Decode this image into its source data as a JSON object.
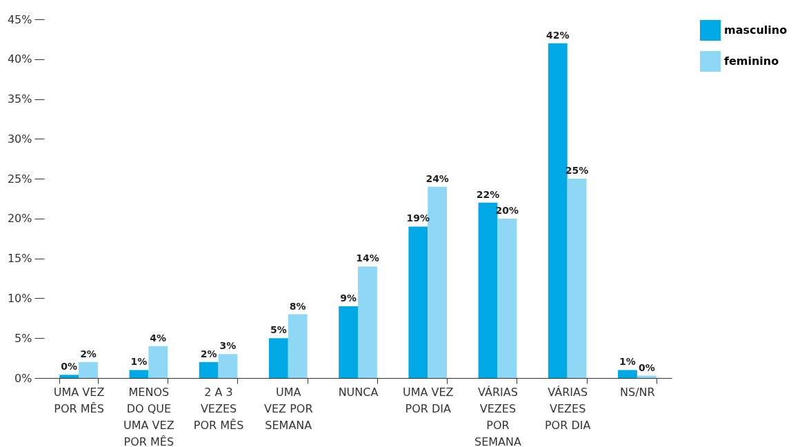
{
  "chart_data": {
    "type": "bar",
    "categories": [
      "UMA VEZ\nPOR MÊS",
      "MENOS\nDO QUE\nUMA VEZ\nPOR MÊS",
      "2 A 3\nVEZES\nPOR MÊS",
      "UMA\nVEZ POR\nSEMANA",
      "NUNCA",
      "UMA VEZ\nPOR DIA",
      "VÁRIAS\nVEZES\nPOR\nSEMANA",
      "VÁRIAS\nVEZES\nPOR DIA",
      "NS/NR"
    ],
    "series": [
      {
        "name": "masculino",
        "color": "#00a8e6",
        "values": [
          0.4,
          1,
          2,
          5,
          9,
          19,
          22,
          42,
          1
        ],
        "value_labels": [
          "0%",
          "1%",
          "2%",
          "5%",
          "9%",
          "19%",
          "22%",
          "42%",
          "1%"
        ]
      },
      {
        "name": "feminino",
        "color": "#8fd8f5",
        "values": [
          2,
          4,
          3,
          8,
          14,
          24,
          20,
          25,
          0.3
        ],
        "value_labels": [
          "2%",
          "4%",
          "3%",
          "8%",
          "14%",
          "24%",
          "20%",
          "25%",
          "0%"
        ]
      }
    ],
    "ylim": [
      0,
      45
    ],
    "yticks": [
      {
        "value": 0,
        "label": "0%"
      },
      {
        "value": 5,
        "label": "5%"
      },
      {
        "value": 10,
        "label": "10%"
      },
      {
        "value": 15,
        "label": "15%"
      },
      {
        "value": 20,
        "label": "20%"
      },
      {
        "value": 25,
        "label": "25%"
      },
      {
        "value": 30,
        "label": "30%"
      },
      {
        "value": 35,
        "label": "35%"
      },
      {
        "value": 40,
        "label": "40%"
      },
      {
        "value": 45,
        "label": "45%"
      }
    ],
    "grid": false,
    "legend": "top right"
  }
}
